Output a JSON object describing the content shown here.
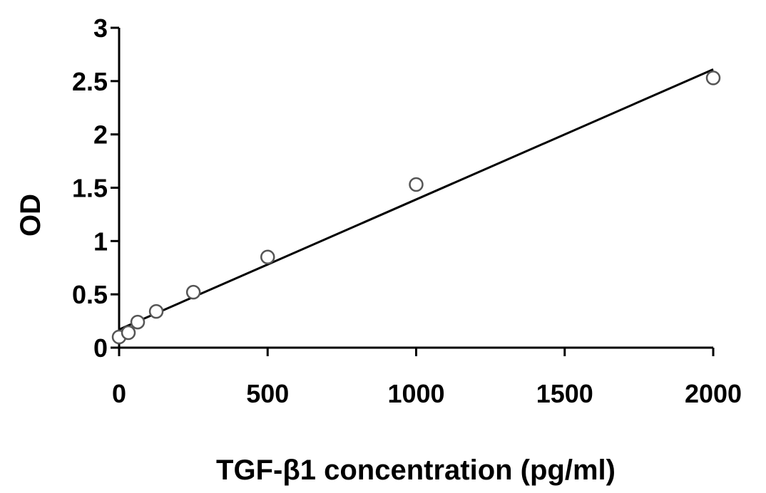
{
  "chart_data": {
    "type": "scatter",
    "title": "",
    "xlabel": "TGF-β1 concentration (pg/ml)",
    "ylabel": "OD",
    "xlim": [
      0,
      2000
    ],
    "ylim": [
      0,
      3
    ],
    "x_ticks": [
      0,
      500,
      1000,
      1500,
      2000
    ],
    "y_ticks": [
      0,
      0.5,
      1,
      1.5,
      2,
      2.5,
      3
    ],
    "x_tick_labels": [
      "0",
      "500",
      "1000",
      "1500",
      "2000"
    ],
    "y_tick_labels": [
      "0",
      "0.5",
      "1",
      "1.5",
      "2",
      "2.5",
      "3"
    ],
    "grid": false,
    "legend": "none",
    "series": [
      {
        "marker": "open-circle",
        "x": [
          0,
          31.25,
          62.5,
          125,
          250,
          500,
          1000,
          2000
        ],
        "y": [
          0.1,
          0.14,
          0.24,
          0.34,
          0.52,
          0.85,
          1.53,
          2.53
        ]
      }
    ],
    "trendline": {
      "type": "linear",
      "x": [
        0,
        2000
      ],
      "y": [
        0.17,
        2.61
      ]
    },
    "colors": {
      "axis": "#000000",
      "marker_fill": "#ffffff",
      "marker_stroke": "#555555",
      "line": "#000000"
    }
  }
}
